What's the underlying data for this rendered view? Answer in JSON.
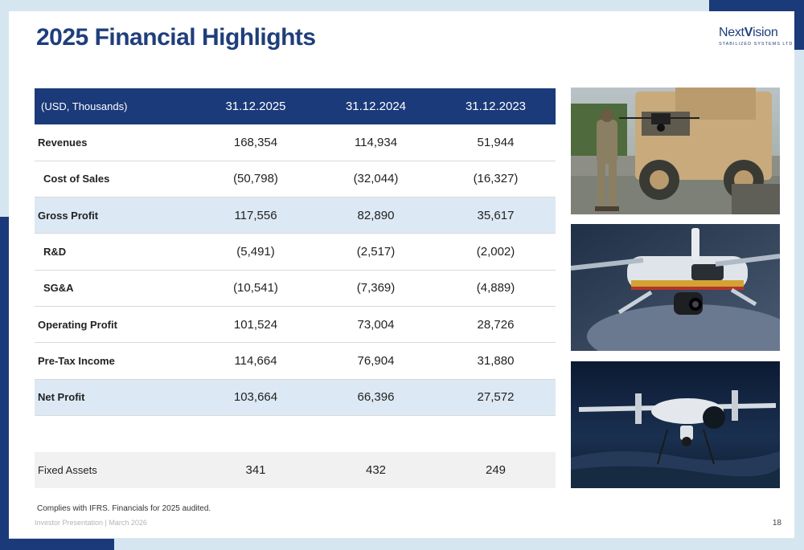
{
  "title": "2025 Financial Highlights",
  "logo": {
    "brand_main": "Next",
    "brand_v": "V",
    "brand_rest": "ision",
    "tagline": "STABILIZED SYSTEMS LTD"
  },
  "colors": {
    "brand": "#1b3a7a",
    "highlight_row": "#dce9f5",
    "fixed_row": "#f1f1f1"
  },
  "table": {
    "headers": [
      "(USD, Thousands)",
      "31.12.2025",
      "31.12.2024",
      "31.12.2023"
    ],
    "rows": [
      {
        "label": "Revenues",
        "values": [
          "168,354",
          "114,934",
          "51,944"
        ]
      },
      {
        "label": "Cost of Sales",
        "values": [
          "(50,798)",
          "(32,044)",
          "(16,327)"
        ]
      },
      {
        "label": "Gross Profit",
        "values": [
          "117,556",
          "82,890",
          "35,617"
        ]
      },
      {
        "label": "R&D",
        "values": [
          "(5,491)",
          "(2,517)",
          "(2,002)"
        ]
      },
      {
        "label": "SG&A",
        "values": [
          "(10,541)",
          "(7,369)",
          "(4,889)"
        ]
      },
      {
        "label": "Operating Profit",
        "values": [
          "101,524",
          "73,004",
          "28,726"
        ]
      },
      {
        "label": "Pre-Tax Income",
        "values": [
          "114,664",
          "76,904",
          "31,880"
        ]
      },
      {
        "label": "Net Profit",
        "values": [
          "103,664",
          "66,396",
          "27,572"
        ]
      }
    ],
    "fixed_assets": {
      "label": "Fixed Assets",
      "values": [
        "341",
        "432",
        "249"
      ]
    }
  },
  "footnote": "Complies with IFRS. Financials for 2025 audited.",
  "footer": "Investor Presentation | March 2026",
  "page_number": "18"
}
